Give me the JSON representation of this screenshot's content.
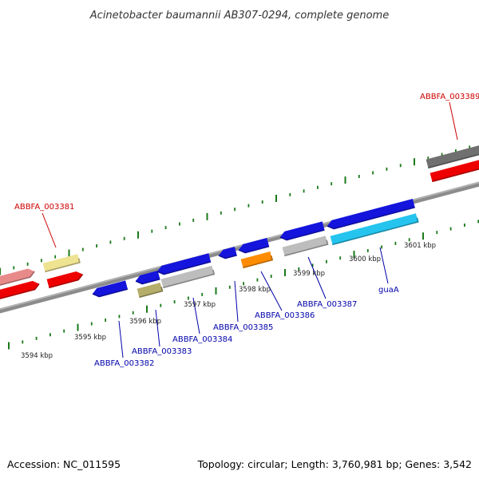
{
  "title": "Acinetobacter baumannii AB307-0294, complete genome",
  "footer": {
    "accession": "Accession: NC_011595",
    "topology": "Topology: circular; Length: 3,760,981 bp; Genes: 3,542"
  },
  "kbp_labels": [
    "3594 kbp",
    "3595 kbp",
    "3596 kbp",
    "3597 kbp",
    "3598 kbp",
    "3599 kbp",
    "3600 kbp",
    "3601 kbp"
  ],
  "gene_labels": [
    {
      "text": "ABBFA_003389",
      "color": "#cc0000"
    },
    {
      "text": "ABBFA_003381",
      "color": "#cc0000"
    },
    {
      "text": "ABBFA_003382",
      "color": "#0000aa"
    },
    {
      "text": "ABBFA_003383",
      "color": "#0000aa"
    },
    {
      "text": "ABBFA_003384",
      "color": "#0000aa"
    },
    {
      "text": "ABBFA_003385",
      "color": "#0000aa"
    },
    {
      "text": "ABBFA_003386",
      "color": "#0000aa"
    },
    {
      "text": "ABBFA_003387",
      "color": "#0000aa"
    },
    {
      "text": "guaA",
      "color": "#0000aa"
    }
  ],
  "colors": {
    "backbone": "#8c8c8c",
    "tick": "#1a7a1a",
    "forward_gene": "#ee0000",
    "reverse_gene": "#1414dd",
    "gray_gene": "#bdbdbd",
    "dark_gray_gene": "#707070",
    "pink_gene": "#e88a8a",
    "yellow_gene": "#eee391",
    "olive_gene": "#b5ad6a",
    "orange_gene": "#ff8c00",
    "cyan_gene": "#25c4ee"
  }
}
